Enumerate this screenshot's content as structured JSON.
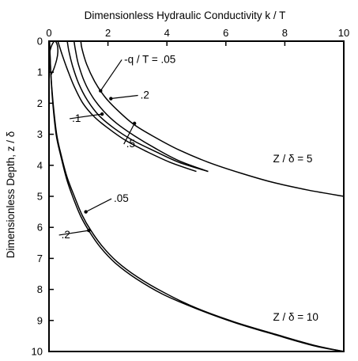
{
  "chart_data": {
    "type": "line",
    "xlabel": "Dimensionless Hydraulic Conductivity  k / T",
    "ylabel": "Dimensionless Depth, z / δ",
    "xlim": [
      0,
      10
    ],
    "ylim": [
      0,
      10
    ],
    "x_axis_position": "top",
    "y_inverted": true,
    "grid": false,
    "x_ticks": [
      "0",
      "2",
      "4",
      "6",
      "8",
      "10"
    ],
    "y_ticks": [
      "0",
      "1",
      "2",
      "3",
      "4",
      "5",
      "6",
      "7",
      "8",
      "9",
      "10"
    ],
    "series": [
      {
        "name": "-q / T = .05",
        "group": "Z / δ = 5",
        "x": [
          1.08,
          1.12,
          1.28,
          1.55,
          1.9,
          2.35,
          2.9,
          3.6,
          4.4,
          5.4,
          6.5,
          7.6,
          8.8,
          10.0
        ],
        "y": [
          0.0,
          0.25,
          0.75,
          1.3,
          1.8,
          2.25,
          2.7,
          3.1,
          3.5,
          3.9,
          4.25,
          4.55,
          4.8,
          5.0
        ]
      },
      {
        "name": ".2",
        "group": "Z / δ = 5",
        "x": [
          0.85,
          0.9,
          1.0,
          1.2,
          1.48,
          1.85,
          2.3,
          2.9,
          3.6,
          4.4,
          5.4
        ],
        "y": [
          0.0,
          0.3,
          0.75,
          1.3,
          1.8,
          2.25,
          2.65,
          3.05,
          3.45,
          3.85,
          4.2
        ]
      },
      {
        "name": ".5",
        "group": "Z / δ = 5",
        "x": [
          0.62,
          0.68,
          0.8,
          1.0,
          1.3,
          1.7,
          2.2,
          2.85,
          3.6,
          4.4,
          5.4
        ],
        "y": [
          0.0,
          0.35,
          0.8,
          1.35,
          1.9,
          2.4,
          2.8,
          3.2,
          3.55,
          3.9,
          4.2
        ]
      },
      {
        "name": ".1",
        "group": "Z / δ = 5",
        "x": [
          0.3,
          0.45,
          0.62,
          0.85,
          1.15,
          1.55,
          2.0,
          2.6,
          3.3,
          4.1,
          5.0
        ],
        "y": [
          0.0,
          0.45,
          0.9,
          1.45,
          2.0,
          2.45,
          2.8,
          3.2,
          3.55,
          3.9,
          4.2
        ]
      },
      {
        "name": ".05",
        "group": "Z / δ = 10",
        "x": [
          0.02,
          0.06,
          0.14,
          0.26,
          0.42,
          0.62,
          0.86,
          1.12,
          1.42,
          1.8,
          2.3,
          3.0,
          3.9,
          5.0,
          6.3,
          7.7,
          9.0,
          10.0
        ],
        "y": [
          0.0,
          1.0,
          2.0,
          3.0,
          3.7,
          4.4,
          5.0,
          5.6,
          6.1,
          6.6,
          7.1,
          7.6,
          8.1,
          8.6,
          9.05,
          9.45,
          9.8,
          10.0
        ]
      },
      {
        "name": ".2",
        "group": "Z / δ = 10",
        "x": [
          0.02,
          0.06,
          0.13,
          0.24,
          0.4,
          0.6,
          0.82,
          1.08,
          1.38,
          1.75,
          2.25,
          2.95,
          3.85,
          5.0,
          6.3,
          7.7,
          9.0,
          10.0
        ],
        "y": [
          0.0,
          1.0,
          2.0,
          3.0,
          3.7,
          4.45,
          5.05,
          5.65,
          6.15,
          6.65,
          7.15,
          7.65,
          8.15,
          8.62,
          9.07,
          9.47,
          9.82,
          10.0
        ]
      },
      {
        "name": "",
        "group": "Z / δ = 10",
        "x": [
          0.0,
          0.05,
          0.12,
          0.2,
          0.28,
          0.3,
          0.26,
          0.16,
          0.06
        ],
        "y": [
          0.5,
          0.25,
          0.08,
          0.0,
          0.12,
          0.35,
          0.6,
          0.9,
          1.1
        ]
      }
    ],
    "annotations": [
      {
        "text": "-q / T = .05",
        "x": 2.55,
        "y": 0.7,
        "arrow_to": [
          1.75,
          1.6
        ]
      },
      {
        "text": ".2",
        "x": 3.1,
        "y": 1.85,
        "arrow_to": [
          2.1,
          1.85
        ]
      },
      {
        "text": ".1",
        "x": 0.78,
        "y": 2.6,
        "arrow_to": [
          1.8,
          2.35
        ]
      },
      {
        "text": ".5",
        "x": 2.62,
        "y": 3.42,
        "arrow_to": [
          2.9,
          2.65
        ]
      },
      {
        "text": ".05",
        "x": 2.2,
        "y": 5.18,
        "arrow_to": [
          1.25,
          5.5
        ]
      },
      {
        "text": ".2",
        "x": 0.42,
        "y": 6.35,
        "arrow_to": [
          1.35,
          6.1
        ]
      },
      {
        "text": "Z / δ = 5",
        "x": 7.6,
        "y": 3.9
      },
      {
        "text": "Z / δ = 10",
        "x": 7.6,
        "y": 9.0
      }
    ]
  }
}
